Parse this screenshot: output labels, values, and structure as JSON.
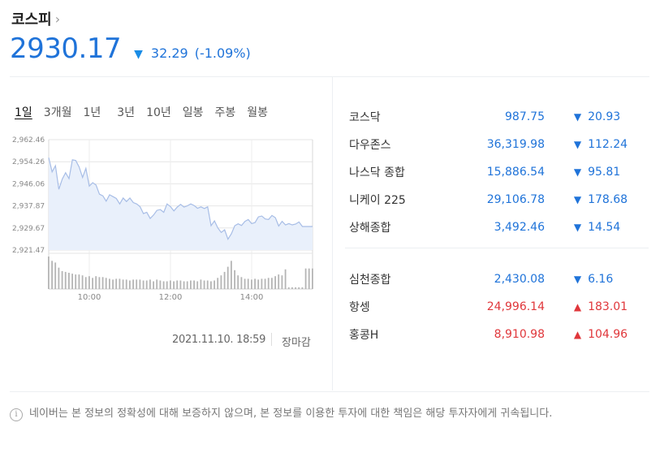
{
  "header": {
    "title": "코스피",
    "title_chevron": "›",
    "price": "2930.17",
    "direction_icon": "▼",
    "change": "32.29",
    "change_pct": "(-1.09%)"
  },
  "tabs": [
    "1일",
    "3개월",
    "1년",
    "3년",
    "10년",
    "일봉",
    "주봉",
    "월봉"
  ],
  "chart_data": {
    "type": "area",
    "title": "",
    "xlabel": "",
    "ylabel": "",
    "y_ticks": [
      "2,962.46",
      "2,954.26",
      "2,946.06",
      "2,937.87",
      "2,929.67",
      "2,921.47"
    ],
    "ylim": [
      2921.47,
      2962.46
    ],
    "x_ticks": [
      "10:00",
      "12:00",
      "14:00"
    ],
    "x_tick_positions": [
      60,
      180,
      300
    ],
    "xlim": [
      0,
      390
    ],
    "grid": true,
    "series": [
      {
        "x": [
          0,
          5,
          10,
          15,
          20,
          25,
          30,
          35,
          40,
          45,
          50,
          55,
          60,
          65,
          70,
          75,
          80,
          85,
          90,
          95,
          100,
          105,
          110,
          115,
          120,
          125,
          130,
          135,
          140,
          145,
          150,
          155,
          160,
          165,
          170,
          175,
          180,
          185,
          190,
          195,
          200,
          205,
          210,
          215,
          220,
          225,
          230,
          235,
          240,
          245,
          250,
          255,
          260,
          265,
          270,
          275,
          280,
          285,
          290,
          295,
          300,
          305,
          310,
          315,
          320,
          325,
          330,
          335,
          340,
          345,
          350,
          355,
          360,
          365,
          370,
          375,
          380,
          385,
          390
        ],
        "values": [
          2955.8,
          2950.5,
          2952.8,
          2944.0,
          2947.8,
          2950.2,
          2948.0,
          2955.0,
          2954.7,
          2952.3,
          2948.4,
          2951.8,
          2945.2,
          2946.5,
          2945.6,
          2942.2,
          2941.6,
          2939.6,
          2942.0,
          2941.3,
          2940.6,
          2938.6,
          2940.8,
          2939.5,
          2940.8,
          2939.1,
          2938.6,
          2937.6,
          2935.0,
          2935.5,
          2933.2,
          2934.5,
          2936.2,
          2936.5,
          2935.5,
          2938.6,
          2937.6,
          2936.0,
          2937.4,
          2938.4,
          2937.4,
          2937.9,
          2938.6,
          2938.0,
          2937.0,
          2937.5,
          2936.9,
          2937.5,
          2930.5,
          2932.3,
          2929.7,
          2928.0,
          2929.0,
          2925.5,
          2927.5,
          2930.5,
          2931.2,
          2930.6,
          2932.1,
          2932.8,
          2931.3,
          2931.7,
          2933.8,
          2934.1,
          2933.0,
          2932.8,
          2934.3,
          2933.5,
          2930.4,
          2932.1,
          2930.8,
          2931.3,
          2930.8,
          2931.1,
          2931.9,
          2930.2,
          2930.2,
          2930.2,
          2930.2
        ]
      },
      {
        "name": "volume",
        "values": [
          38,
          33,
          31,
          25,
          21,
          20,
          19,
          18,
          17,
          17,
          16,
          14,
          15,
          13,
          15,
          14,
          14,
          13,
          12,
          11,
          12,
          12,
          11,
          11,
          10,
          11,
          11,
          11,
          10,
          10,
          11,
          9,
          11,
          10,
          9,
          9,
          10,
          9,
          10,
          10,
          9,
          9,
          10,
          10,
          9,
          11,
          10,
          10,
          9,
          10,
          13,
          16,
          20,
          26,
          33,
          22,
          16,
          14,
          12,
          12,
          11,
          12,
          11,
          12,
          12,
          13,
          13,
          15,
          17,
          16,
          23,
          2,
          2,
          2,
          2,
          2,
          24,
          24,
          24
        ]
      }
    ]
  },
  "chart_footer": {
    "datetime": "2021.11.10. 18:59",
    "status": "장마감"
  },
  "indices": [
    {
      "name": "코스닥",
      "value": "987.75",
      "dir": "▼",
      "change": "20.93",
      "color": "blue"
    },
    {
      "name": "다우존스",
      "value": "36,319.98",
      "dir": "▼",
      "change": "112.24",
      "color": "blue"
    },
    {
      "name": "나스닥 종합",
      "value": "15,886.54",
      "dir": "▼",
      "change": "95.81",
      "color": "blue"
    },
    {
      "name": "니케이 225",
      "value": "29,106.78",
      "dir": "▼",
      "change": "178.68",
      "color": "blue"
    },
    {
      "name": "상해종합",
      "value": "3,492.46",
      "dir": "▼",
      "change": "14.54",
      "color": "blue"
    },
    {
      "name": "심천종합",
      "value": "2,430.08",
      "dir": "▼",
      "change": "6.16",
      "color": "blue"
    },
    {
      "name": "항셍",
      "value": "24,996.14",
      "dir": "▲",
      "change": "183.01",
      "color": "red"
    },
    {
      "name": "홍콩H",
      "value": "8,910.98",
      "dir": "▲",
      "change": "104.96",
      "color": "red"
    }
  ],
  "notice": {
    "icon": "info-icon",
    "text": "네이버는 본 정보의 정확성에 대해 보증하지 않으며, 본 정보를 이용한 투자에 대한 책임은 해당 투자자에게 귀속됩니다."
  },
  "colors": {
    "up": "#e0373b",
    "down": "#1f73d9",
    "line": "#a7bde6",
    "fill": "#e9f0fb",
    "volume": "#b5b5b5"
  }
}
